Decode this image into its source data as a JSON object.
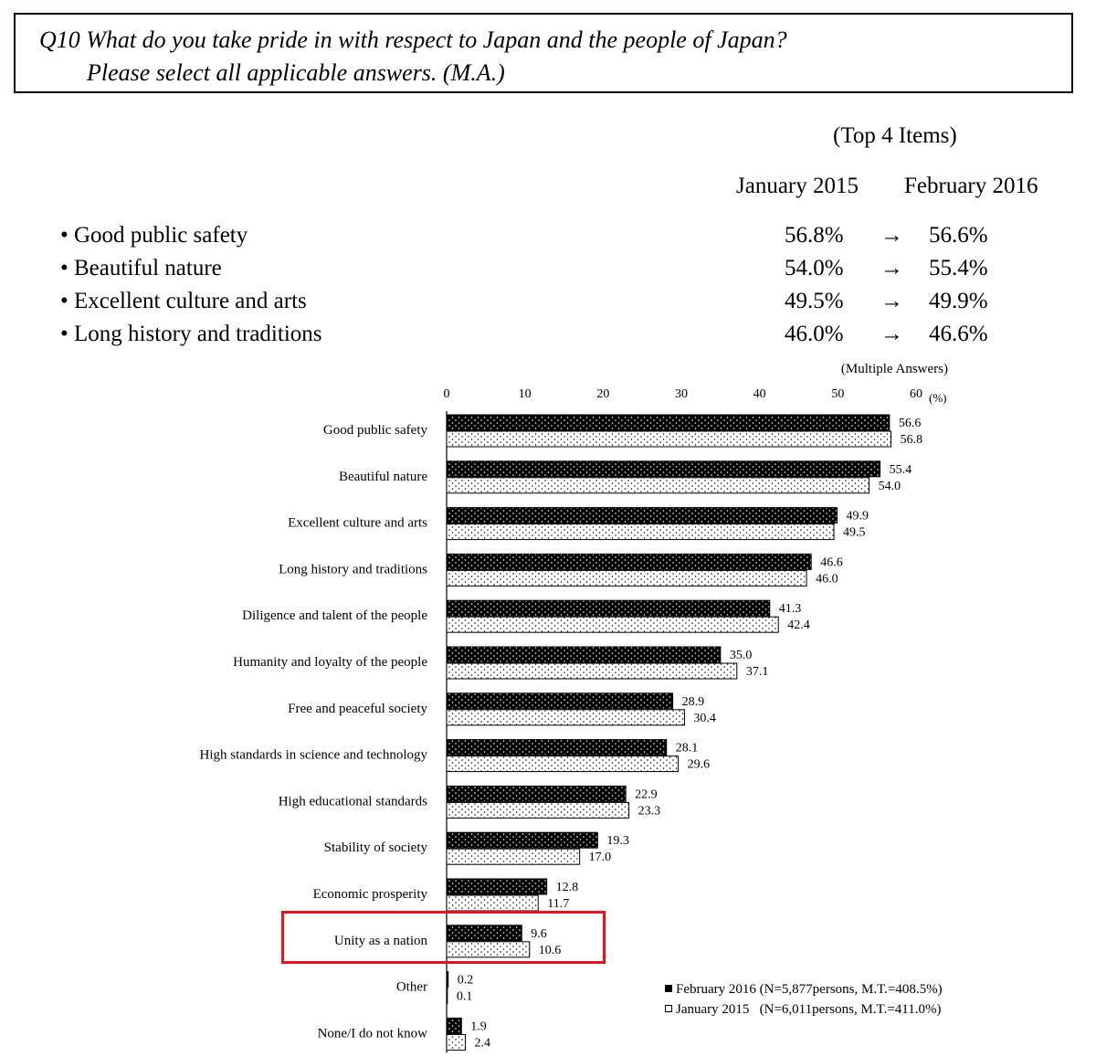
{
  "question": {
    "line1": "Q10 What do you take pride in with respect to Japan and the people of Japan?",
    "line2": "Please select all applicable answers. (M.A.)"
  },
  "summary": {
    "title": "(Top 4 Items)",
    "col1": "January 2015",
    "col2": "February 2016",
    "arrow": "→",
    "rows": [
      {
        "label": "• Good public safety",
        "v1": "56.8%",
        "v2": "56.6%"
      },
      {
        "label": "• Beautiful nature",
        "v1": "54.0%",
        "v2": "55.4%"
      },
      {
        "label": "• Excellent culture and arts",
        "v1": "49.5%",
        "v2": "49.9%"
      },
      {
        "label": "• Long history and traditions",
        "v1": "46.0%",
        "v2": "46.6%"
      }
    ]
  },
  "chart_data": {
    "type": "bar",
    "orientation": "horizontal",
    "note": "(Multiple Answers)",
    "unit": "(%)",
    "xlim": [
      0,
      60
    ],
    "ticks": [
      0,
      10,
      20,
      30,
      40,
      50,
      60
    ],
    "categories": [
      "Good public safety",
      "Beautiful nature",
      "Excellent culture and arts",
      "Long history and traditions",
      "Diligence and talent of the people",
      "Humanity and loyalty of the people",
      "Free and peaceful society",
      "High standards in science and technology",
      "High educational standards",
      "Stability of society",
      "Economic prosperity",
      "Unity as a nation",
      "Other",
      "None/I do not know"
    ],
    "series": [
      {
        "name": "February 2016 (N=5,877persons, M.T.=408.5%)",
        "color": "#000000",
        "values": [
          56.6,
          55.4,
          49.9,
          46.6,
          41.3,
          35.0,
          28.9,
          28.1,
          22.9,
          19.3,
          12.8,
          9.6,
          0.2,
          1.9
        ]
      },
      {
        "name": "January 2015   (N=6,011persons, M.T.=411.0%)",
        "color": "#ffffff",
        "values": [
          56.8,
          54.0,
          49.5,
          46.0,
          42.4,
          37.1,
          30.4,
          29.6,
          23.3,
          17.0,
          11.7,
          10.6,
          0.1,
          2.4
        ]
      }
    ],
    "highlighted_category": "Unity as a nation",
    "highlight_color": "#e8141c",
    "legend_position": "bottom-right"
  }
}
